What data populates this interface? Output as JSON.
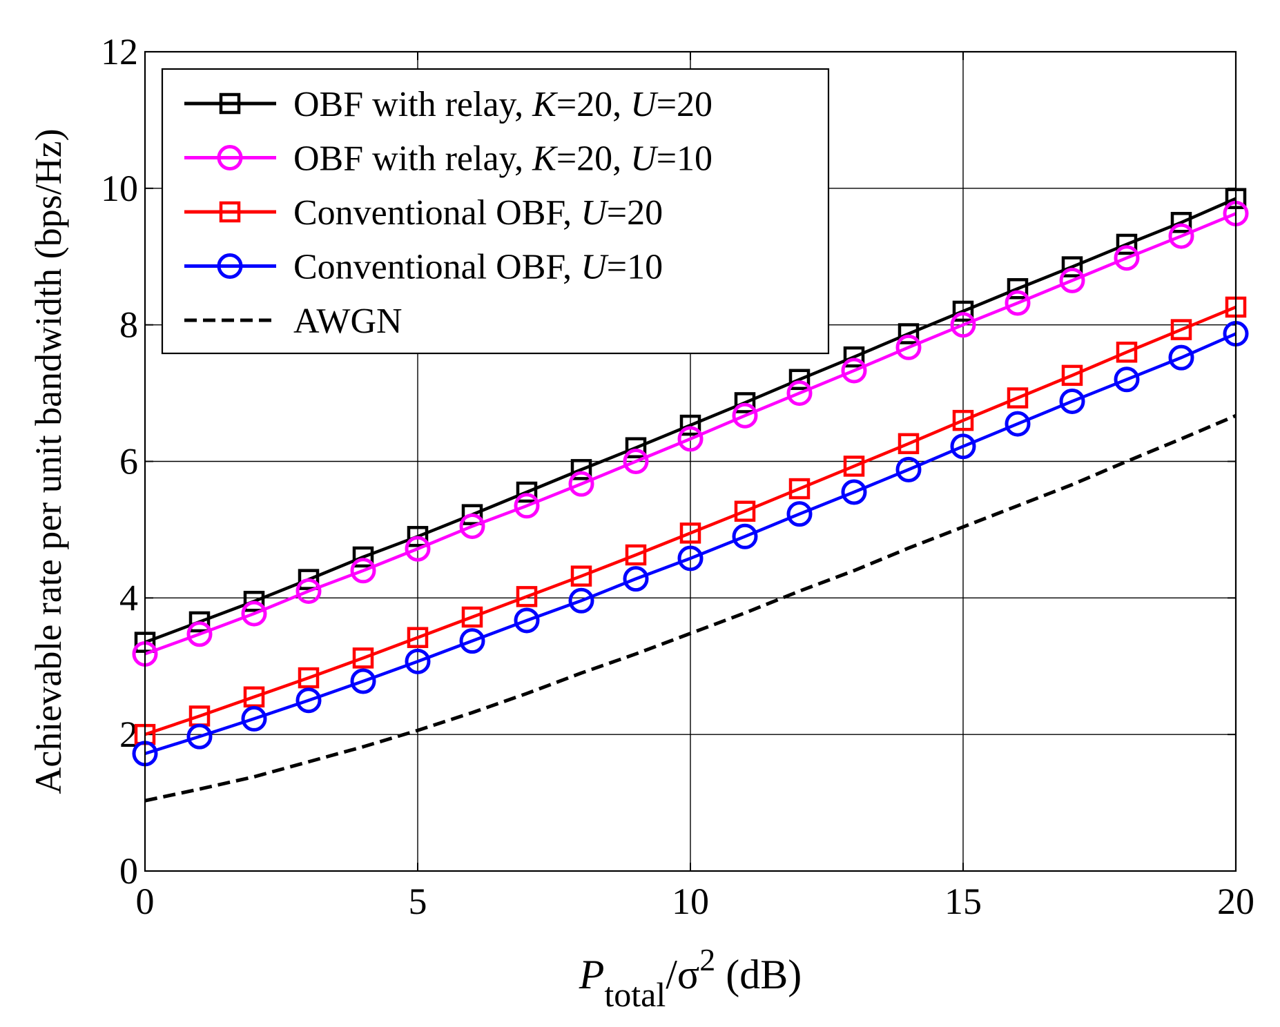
{
  "chart_data": {
    "type": "line",
    "title": "",
    "xlabel": {
      "main": "P",
      "sub": "total",
      "rest": "/σ",
      "sup": "2",
      "unit": " (dB)"
    },
    "ylabel": "Achievable rate per unit bandwidth (bps/Hz)",
    "xlim": [
      0,
      20
    ],
    "ylim": [
      0,
      12
    ],
    "xticks": [
      0,
      5,
      10,
      15,
      20
    ],
    "yticks": [
      0,
      2,
      4,
      6,
      8,
      10,
      12
    ],
    "xtick_labels": [
      "0",
      "5",
      "10",
      "15",
      "20"
    ],
    "ytick_labels": [
      "0",
      "2",
      "4",
      "6",
      "8",
      "10",
      "12"
    ],
    "grid": true,
    "legend_position": "top-left",
    "x": [
      0,
      1,
      2,
      3,
      4,
      5,
      6,
      7,
      8,
      9,
      10,
      11,
      12,
      13,
      14,
      15,
      16,
      17,
      18,
      19,
      20
    ],
    "series": [
      {
        "name": "OBF with relay, K=20, U=20",
        "legend_parts": [
          [
            "OBF with relay,  ",
            false
          ],
          [
            "K",
            true
          ],
          [
            "=20,  ",
            false
          ],
          [
            "U",
            true
          ],
          [
            "=20",
            false
          ]
        ],
        "color": "#000000",
        "marker": "square",
        "values": [
          3.35,
          3.65,
          3.95,
          4.27,
          4.6,
          4.9,
          5.22,
          5.55,
          5.88,
          6.2,
          6.53,
          6.86,
          7.2,
          7.53,
          7.87,
          8.2,
          8.53,
          8.85,
          9.18,
          9.5,
          9.85
        ]
      },
      {
        "name": "OBF with relay, K=20, U=10",
        "legend_parts": [
          [
            "OBF with relay,  ",
            false
          ],
          [
            "K",
            true
          ],
          [
            "=20,  ",
            false
          ],
          [
            "U",
            true
          ],
          [
            "=10",
            false
          ]
        ],
        "color": "#ff00ff",
        "marker": "circle",
        "values": [
          3.18,
          3.47,
          3.77,
          4.1,
          4.4,
          4.72,
          5.05,
          5.35,
          5.67,
          6.0,
          6.33,
          6.67,
          7.0,
          7.33,
          7.67,
          8.0,
          8.32,
          8.65,
          8.98,
          9.3,
          9.63
        ]
      },
      {
        "name": "Conventional OBF, U=20",
        "legend_parts": [
          [
            "Conventional OBF,  ",
            false
          ],
          [
            "U",
            true
          ],
          [
            "=20",
            false
          ]
        ],
        "color": "#ff0000",
        "marker": "square",
        "values": [
          2.0,
          2.27,
          2.55,
          2.83,
          3.12,
          3.42,
          3.72,
          4.02,
          4.32,
          4.63,
          4.95,
          5.27,
          5.6,
          5.93,
          6.26,
          6.6,
          6.93,
          7.26,
          7.6,
          7.93,
          8.26
        ]
      },
      {
        "name": "Conventional OBF, U=10",
        "legend_parts": [
          [
            "Conventional OBF,  ",
            false
          ],
          [
            "U",
            true
          ],
          [
            "=10",
            false
          ]
        ],
        "color": "#0000ff",
        "marker": "circle",
        "values": [
          1.72,
          1.97,
          2.23,
          2.5,
          2.78,
          3.07,
          3.37,
          3.67,
          3.96,
          4.28,
          4.58,
          4.9,
          5.23,
          5.55,
          5.88,
          6.22,
          6.55,
          6.88,
          7.2,
          7.52,
          7.87
        ]
      },
      {
        "name": "AWGN",
        "legend_parts": [
          [
            "AWGN",
            false
          ]
        ],
        "color": "#000000",
        "marker": "none",
        "dashed": true,
        "values": [
          1.03,
          1.2,
          1.38,
          1.6,
          1.82,
          2.06,
          2.32,
          2.6,
          2.9,
          3.18,
          3.48,
          3.78,
          4.1,
          4.4,
          4.73,
          5.04,
          5.35,
          5.66,
          6.0,
          6.33,
          6.67
        ]
      }
    ]
  }
}
